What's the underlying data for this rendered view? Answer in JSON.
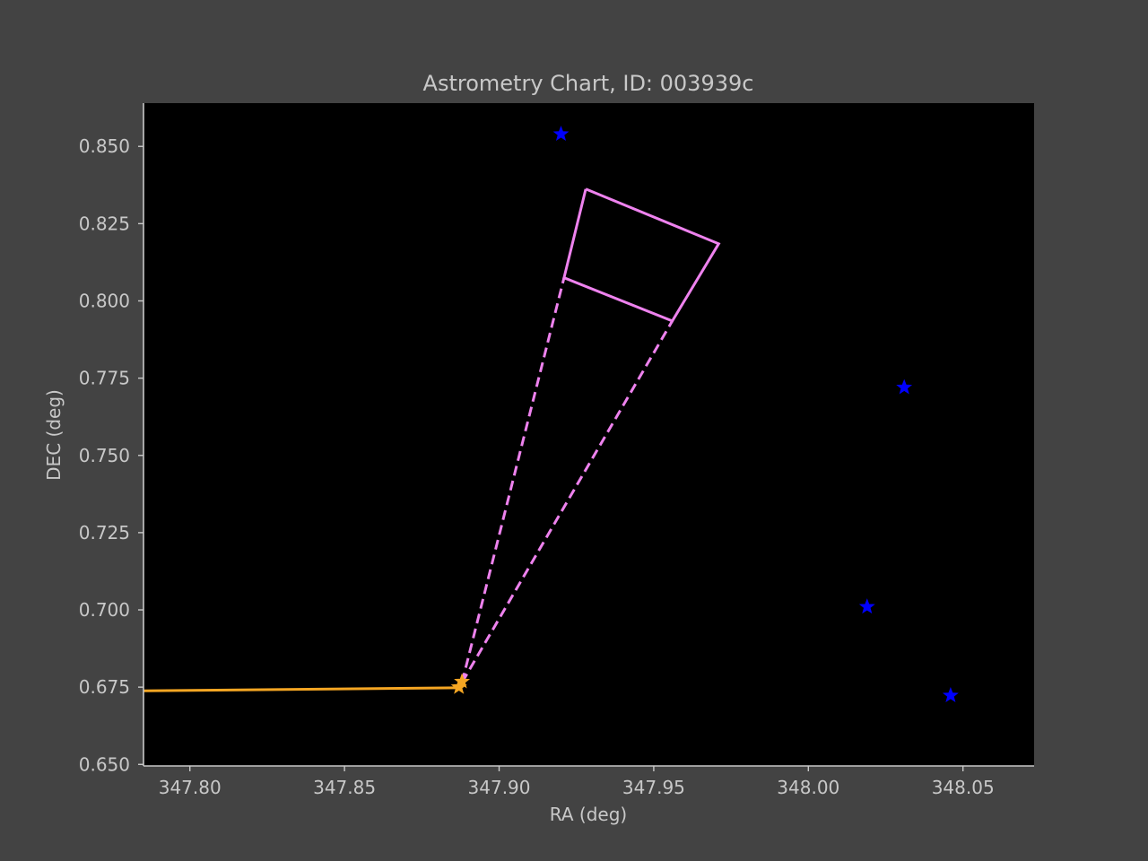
{
  "chart_data": {
    "type": "scatter",
    "title": "Astrometry Chart, ID: 003939c",
    "xlabel": "RA (deg)",
    "ylabel": "DEC (deg)",
    "xlim": [
      347.785,
      348.073
    ],
    "ylim": [
      0.6495,
      0.864
    ],
    "xticks": [
      {
        "value": 347.8,
        "label": "347.80"
      },
      {
        "value": 347.85,
        "label": "347.85"
      },
      {
        "value": 347.9,
        "label": "347.90"
      },
      {
        "value": 347.95,
        "label": "347.95"
      },
      {
        "value": 348.0,
        "label": "348.00"
      },
      {
        "value": 348.05,
        "label": "348.05"
      }
    ],
    "yticks": [
      {
        "value": 0.65,
        "label": "0.650"
      },
      {
        "value": 0.675,
        "label": "0.675"
      },
      {
        "value": 0.7,
        "label": "0.700"
      },
      {
        "value": 0.725,
        "label": "0.725"
      },
      {
        "value": 0.75,
        "label": "0.750"
      },
      {
        "value": 0.775,
        "label": "0.775"
      },
      {
        "value": 0.8,
        "label": "0.800"
      },
      {
        "value": 0.825,
        "label": "0.825"
      },
      {
        "value": 0.85,
        "label": "0.850"
      }
    ],
    "grid": false,
    "colors": {
      "figure_bg": "#434343",
      "plot_bg": "#000000",
      "axis": "#c8c8c8",
      "track": "#f5a623",
      "field": "#ee82ee",
      "stars": "#0000ff"
    },
    "track": {
      "points": [
        [
          347.785,
          0.6738
        ],
        [
          347.887,
          0.6748
        ]
      ],
      "markers": [
        [
          347.887,
          0.675
        ],
        [
          347.888,
          0.6768
        ]
      ]
    },
    "field_box": {
      "apex": [
        347.888,
        0.6765
      ],
      "solid": [
        [
          347.928,
          0.8362
        ],
        [
          347.971,
          0.8185
        ],
        [
          347.956,
          0.7935
        ],
        [
          347.921,
          0.8075
        ],
        [
          347.928,
          0.8362
        ]
      ],
      "dashed_to": [
        [
          347.921,
          0.8075
        ],
        [
          347.956,
          0.7935
        ]
      ]
    },
    "stars": [
      [
        347.92,
        0.854
      ],
      [
        348.031,
        0.772
      ],
      [
        348.019,
        0.701
      ],
      [
        348.046,
        0.6723
      ]
    ]
  }
}
